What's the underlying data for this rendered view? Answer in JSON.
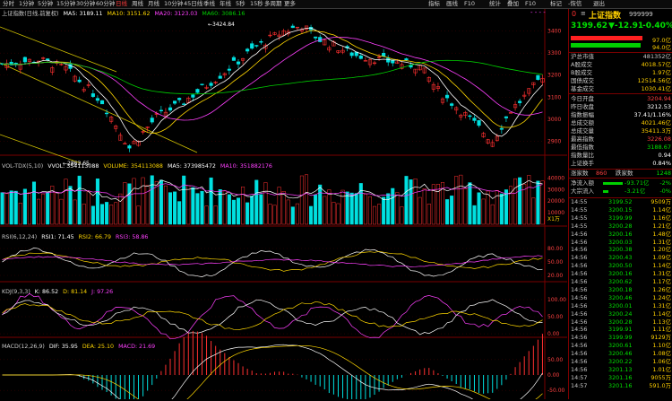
{
  "toolbar": {
    "left_items": [
      "分时",
      "1分钟",
      "5分钟",
      "15分钟",
      "30分钟",
      "60分钟",
      "日线",
      "周线",
      "月线",
      "10分钟",
      "45日线",
      "季线",
      "年线",
      "5秒",
      "15秒",
      "多周期",
      "更多"
    ],
    "active_index": 6,
    "right_items": [
      "指标",
      "画线",
      "F10",
      "统计",
      "叠加",
      "F10",
      "标记",
      "-恢信",
      "退出"
    ]
  },
  "main_info": {
    "name": "上证指数(日线,前复权)",
    "ma5": "MA5: 3189.11",
    "ma10": "MA10: 3151.62",
    "ma20": "MA20: 3123.03",
    "ma60": "MA60: 3086.16",
    "colors": {
      "ma5": "#ffffff",
      "ma10": "#ffd700",
      "ma20": "#ff40ff",
      "ma60": "#00d000"
    }
  },
  "price_axis": [
    "3400",
    "3300",
    "3200",
    "3100",
    "3000",
    "2900"
  ],
  "annotations": {
    "high": "3424.84",
    "low": "2863.65"
  },
  "vol_info": {
    "name": "VOL-TDX(5,10)",
    "vvol": "VVOL: 354113088",
    "volume": "VOLUME: 354113088",
    "ma5": "MA5: 373985472",
    "ma10": "MA10: 351882176"
  },
  "vol_axis": [
    "40000",
    "30000",
    "20000",
    "10000"
  ],
  "vol_unit": "X1万",
  "rsi_info": {
    "name": "RSI(6,12,24)",
    "rsi1": "RSI1: 71.45",
    "rsi2": "RSI2: 66.79",
    "rsi3": "RSI3: 58.86"
  },
  "rsi_axis": [
    "80.00",
    "50.00",
    "20.00"
  ],
  "kdj_info": {
    "name": "KDJ(9,3,3)",
    "k": "K: 86.52",
    "d": "D: 81.14",
    "j": "J: 97.26"
  },
  "kdj_axis": [
    "100.00",
    "50.00",
    "0.00"
  ],
  "macd_info": {
    "name": "MACD(12,26,9)",
    "dif": "DIF: 35.95",
    "dea": "DEA: 25.10",
    "macd": "MACD: 21.69"
  },
  "macd_axis": [
    "50.00",
    "0.00",
    "-50.00"
  ],
  "stock": {
    "code_prefix": "0",
    "name": "上证指数",
    "code": "999999",
    "price": "3199.62",
    "change": "▼-12.91",
    "pct": "-0.40%",
    "bar_top": "97.0亿",
    "bar_bottom": "94.0亿"
  },
  "stats1": [
    {
      "k": "沪总市值",
      "v": "481352亿",
      "c": "#c8c8c8"
    },
    {
      "k": "A股成交",
      "v": "4018.57亿",
      "c": "#ffd000"
    },
    {
      "k": "B股成交",
      "v": "1.97亿",
      "c": "#ffd000"
    },
    {
      "k": "国债成交",
      "v": "12514.56亿",
      "c": "#ffd000"
    },
    {
      "k": "基金成交",
      "v": "1030.41亿",
      "c": "#ffd000"
    }
  ],
  "stats2": [
    {
      "k": "今日开盘",
      "v": "3204.94",
      "c": "#ff4040"
    },
    {
      "k": "昨日收盘",
      "v": "3212.53",
      "c": "#ffffff"
    },
    {
      "k": "指数振幅",
      "v": "37.41/1.16%",
      "c": "#ffffff"
    },
    {
      "k": "总成交额",
      "v": "4021.46亿",
      "c": "#ffd000"
    },
    {
      "k": "总成交量",
      "v": "35411.3万",
      "c": "#ffd000"
    },
    {
      "k": "最高指数",
      "v": "3226.08",
      "c": "#ff4040"
    },
    {
      "k": "最低指数",
      "v": "3188.67",
      "c": "#00e000"
    },
    {
      "k": "指数量比",
      "v": "0.94",
      "c": "#ffffff"
    },
    {
      "k": "上证换手",
      "v": "0.84%",
      "c": "#ffffff"
    }
  ],
  "updown": {
    "up_label": "涨家数",
    "up": "860",
    "down_label": "跌家数",
    "down": "1248"
  },
  "flows": [
    {
      "k": "净流入额",
      "v": "-93.71亿",
      "p": "-2%"
    },
    {
      "k": "大宗流入",
      "v": "-3.21亿",
      "p": "-0%"
    }
  ],
  "ticks": [
    {
      "t": "14:55",
      "p": "3199.52",
      "v": "9509万"
    },
    {
      "t": "14:55",
      "p": "3200.15",
      "v": "1.14亿"
    },
    {
      "t": "14:55",
      "p": "3199.99",
      "v": "1.16亿"
    },
    {
      "t": "14:55",
      "p": "3200.28",
      "v": "1.21亿"
    },
    {
      "t": "14:56",
      "p": "3200.16",
      "v": "1.48亿"
    },
    {
      "t": "14:56",
      "p": "3200.03",
      "v": "1.31亿"
    },
    {
      "t": "14:56",
      "p": "3200.38",
      "v": "1.20亿"
    },
    {
      "t": "14:56",
      "p": "3200.43",
      "v": "1.09亿"
    },
    {
      "t": "14:56",
      "p": "3200.50",
      "v": "1.14亿"
    },
    {
      "t": "14:56",
      "p": "3200.16",
      "v": "1.31亿"
    },
    {
      "t": "14:56",
      "p": "3200.62",
      "v": "1.17亿"
    },
    {
      "t": "14:56",
      "p": "3200.18",
      "v": "1.26亿"
    },
    {
      "t": "14:56",
      "p": "3200.46",
      "v": "1.24亿"
    },
    {
      "t": "14:56",
      "p": "3200.01",
      "v": "1.31亿"
    },
    {
      "t": "14:56",
      "p": "3200.24",
      "v": "1.14亿"
    },
    {
      "t": "14:56",
      "p": "3200.28",
      "v": "1.13亿"
    },
    {
      "t": "14:56",
      "p": "3199.91",
      "v": "1.11亿"
    },
    {
      "t": "14:56",
      "p": "3199.99",
      "v": "9129万"
    },
    {
      "t": "14:56",
      "p": "3200.61",
      "v": "1.10亿"
    },
    {
      "t": "14:56",
      "p": "3200.46",
      "v": "1.08亿"
    },
    {
      "t": "14:56",
      "p": "3200.22",
      "v": "1.06亿"
    },
    {
      "t": "14:56",
      "p": "3201.13",
      "v": "1.01亿"
    },
    {
      "t": "14:57",
      "p": "3201.16",
      "v": "9055万"
    },
    {
      "t": "14:57",
      "p": "3201.16",
      "v": "591.0万"
    }
  ]
}
